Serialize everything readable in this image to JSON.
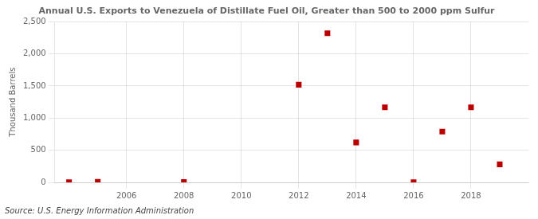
{
  "chart_data": {
    "type": "scatter",
    "title": "Annual U.S. Exports to Venezuela of Distillate Fuel Oil, Greater than 500 to 2000 ppm Sulfur",
    "y_label": "Thousand Barrels",
    "annotations": [
      "Source: U.S. Energy Information Administration"
    ],
    "x": [
      2004,
      2005,
      2008,
      2012,
      2013,
      2014,
      2015,
      2016,
      2017,
      2018,
      2019
    ],
    "values": [
      2,
      10,
      5,
      1519,
      2320,
      621,
      1168,
      4,
      789,
      1168,
      280
    ],
    "color": "#bb0000",
    "marker": "square",
    "xlim": [
      2003.5,
      2020.0
    ],
    "ylim": [
      0,
      2500
    ],
    "xticks": [
      2006,
      2008,
      2010,
      2012,
      2014,
      2016,
      2018
    ],
    "yticks": [
      0,
      500,
      {
        "value": 1000,
        "label": "1,000"
      },
      {
        "value": 1500,
        "label": "1,500"
      },
      {
        "value": 2000,
        "label": "2,000"
      },
      {
        "value": 2500,
        "label": "2,500"
      }
    ],
    "grid": true
  }
}
